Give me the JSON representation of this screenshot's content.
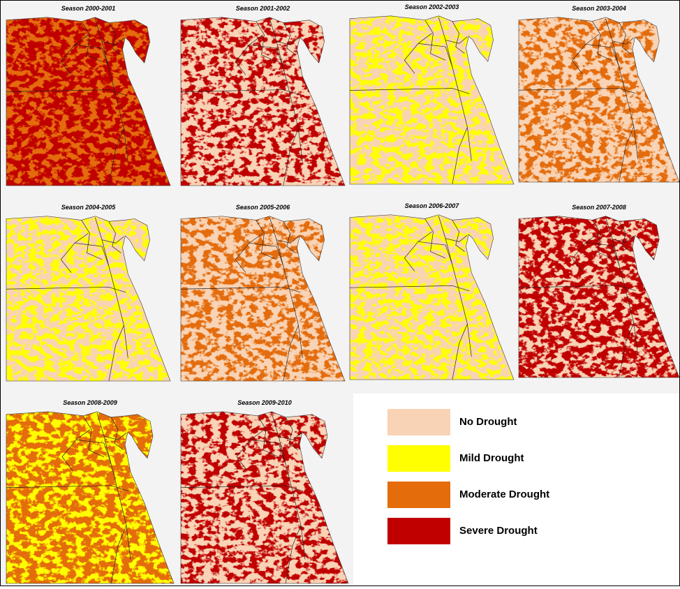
{
  "maps": [
    {
      "title": "Season 2000-2001"
    },
    {
      "title": "Season 2001-2002"
    },
    {
      "title": "Season 2002-2003"
    },
    {
      "title": "Season 2003-2004"
    },
    {
      "title": "Season 2004-2005"
    },
    {
      "title": "Season 2005-2006"
    },
    {
      "title": "Season 2006-2007"
    },
    {
      "title": "Season 2007-2008"
    },
    {
      "title": "Season 2008-2009"
    },
    {
      "title": "Season 2009-2010"
    }
  ],
  "legend": {
    "items": [
      {
        "label": "No Drought",
        "color": "#f9d3b5"
      },
      {
        "label": "Mild Drought",
        "color": "#ffff00"
      },
      {
        "label": "Moderate Drought",
        "color": "#e46c0a"
      },
      {
        "label": "Severe Drought",
        "color": "#c00000"
      }
    ]
  }
}
